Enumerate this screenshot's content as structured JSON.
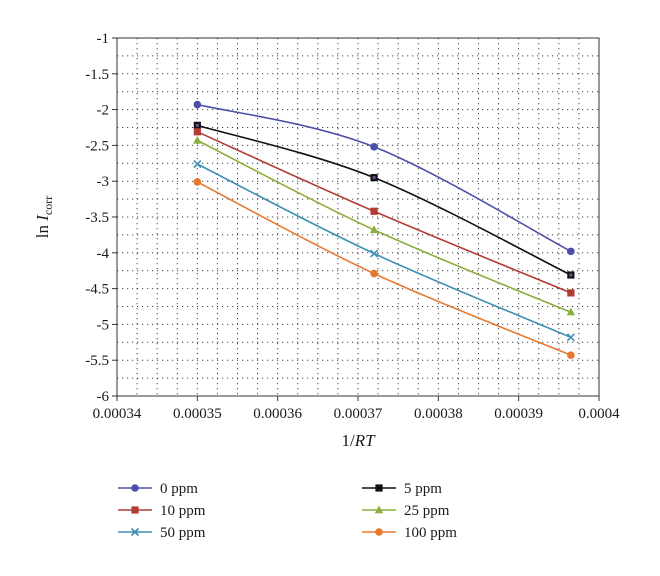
{
  "chart_data": {
    "type": "line",
    "title": "",
    "xlabel": {
      "prefix": "1/",
      "italic": "RT"
    },
    "ylabel": {
      "prefix": "ln ",
      "italic": "I",
      "subscript": "corr"
    },
    "xlim": [
      0.00034,
      0.0004
    ],
    "ylim": [
      -6,
      -1
    ],
    "xticks": [
      "0.00034",
      "0.00035",
      "0.00036",
      "0.00037",
      "0.00038",
      "0.00039",
      "0.0004"
    ],
    "yticks": [
      "-1",
      "-1.5",
      "-2",
      "-2.5",
      "-3",
      "-3.5",
      "-4",
      "-4.5",
      "-5",
      "-5.5",
      "-6"
    ],
    "grid": "dotted",
    "legend_position": "bottom",
    "x": [
      0.00035,
      0.000372,
      0.0003965
    ],
    "series": [
      {
        "name": "0 ppm",
        "color": "#4b4fa8",
        "marker": "circle",
        "values": [
          -1.93,
          -2.52,
          -3.98
        ]
      },
      {
        "name": "5 ppm",
        "color": "#111111",
        "marker": "square",
        "values": [
          -2.22,
          -2.95,
          -4.31
        ]
      },
      {
        "name": "10 ppm",
        "color": "#b13b35",
        "marker": "square",
        "values": [
          -2.31,
          -3.42,
          -4.56
        ]
      },
      {
        "name": "25 ppm",
        "color": "#8aae3c",
        "marker": "triangle",
        "values": [
          -2.43,
          -3.68,
          -4.83
        ]
      },
      {
        "name": "50 ppm",
        "color": "#3e8fb5",
        "marker": "x",
        "values": [
          -2.76,
          -4.01,
          -5.18
        ]
      },
      {
        "name": "100 ppm",
        "color": "#e8782d",
        "marker": "circle",
        "values": [
          -3.01,
          -4.29,
          -5.43
        ]
      }
    ]
  }
}
